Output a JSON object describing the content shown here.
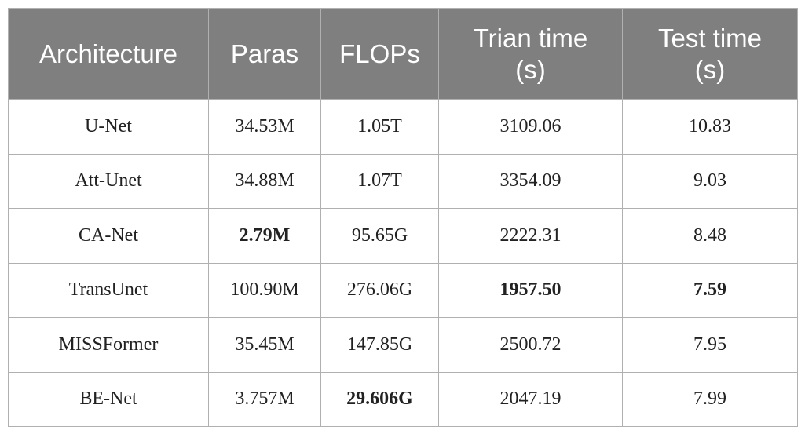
{
  "table": {
    "header": [
      "Architecture",
      "Paras",
      "FLOPs",
      "Trian time (s)",
      "Test time (s)"
    ],
    "rows": [
      [
        "U-Net",
        "34.53M",
        "1.05T",
        "3109.06",
        "10.83"
      ],
      [
        "Att-Unet",
        "34.88M",
        "1.07T",
        "3354.09",
        "9.03"
      ],
      [
        "CA-Net",
        "2.79M",
        "95.65G",
        "2222.31",
        "8.48"
      ],
      [
        "TransUnet",
        "100.90M",
        "276.06G",
        "1957.50",
        "7.59"
      ],
      [
        "MISSFormer",
        "35.45M",
        "147.85G",
        "2500.72",
        "7.95"
      ],
      [
        "BE-Net",
        "3.757M",
        "29.606G",
        "2047.19",
        "7.99"
      ]
    ]
  }
}
